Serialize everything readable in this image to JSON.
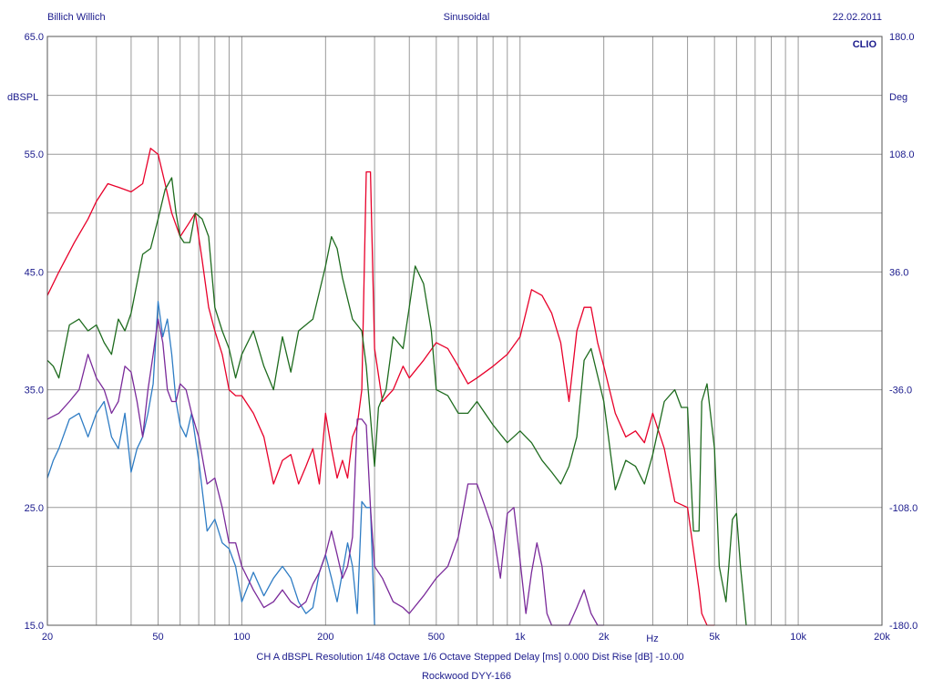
{
  "header": {
    "left": "Billich Willich",
    "center": "Sinusoidal",
    "right": "22.02.2011",
    "brand": "CLIO"
  },
  "footer": {
    "line1": "CH A   dBSPL   Resolution 1/48 Octave    1/6 Octave   Stepped     Delay [ms] 0.000    Dist Rise [dB] -10.00",
    "line2": "Rockwood DYY-166"
  },
  "chart_data": {
    "type": "line",
    "title": "Sinusoidal",
    "xlabel": "Hz",
    "ylabel": "dBSPL",
    "y2label": "Deg",
    "xscale": "log",
    "xlim": [
      20,
      20000
    ],
    "ylim": [
      15,
      65
    ],
    "y2lim": [
      -180,
      180
    ],
    "grid": true,
    "x_ticks": [
      20,
      50,
      100,
      200,
      500,
      1000,
      2000,
      5000,
      10000,
      20000
    ],
    "x_tick_labels": [
      "20",
      "50",
      "100",
      "200",
      "500",
      "1k",
      "2k",
      "5k",
      "10k",
      "20k"
    ],
    "y_ticks": [
      15,
      25,
      35,
      45,
      55,
      65
    ],
    "y_tick_labels": [
      "15.0",
      "25.0",
      "35.0",
      "45.0",
      "55.0",
      "65.0"
    ],
    "y2_ticks": [
      -180,
      -108,
      -36,
      36,
      108,
      180
    ],
    "y2_tick_labels": [
      "-180.0",
      "-108.0",
      "-36.0",
      "36.0",
      "108.0",
      "180.0"
    ],
    "series": [
      {
        "color": "#e8002a",
        "x": [
          20,
          22,
          25,
          28,
          30,
          33,
          36,
          40,
          44,
          47,
          50,
          53,
          56,
          60,
          64,
          68,
          72,
          76,
          80,
          85,
          90,
          95,
          100,
          110,
          120,
          130,
          140,
          150,
          160,
          170,
          180,
          190,
          200,
          210,
          220,
          230,
          240,
          250,
          260,
          270,
          280,
          290,
          300,
          320,
          350,
          380,
          400,
          450,
          500,
          550,
          600,
          650,
          700,
          800,
          900,
          1000,
          1100,
          1200,
          1300,
          1400,
          1500,
          1600,
          1700,
          1800,
          1900,
          2000,
          2200,
          2400,
          2600,
          2800,
          3000,
          3300,
          3600,
          4000,
          4400,
          4500,
          4700,
          5000
        ],
        "y": [
          43.0,
          45.0,
          47.5,
          49.5,
          51.0,
          52.5,
          52.2,
          51.8,
          52.5,
          55.5,
          55.0,
          52.5,
          50.0,
          48.0,
          49.0,
          50.0,
          46.0,
          42.0,
          40.0,
          38.0,
          35.0,
          34.5,
          34.5,
          33.0,
          31.0,
          27.0,
          29.0,
          29.5,
          27.0,
          28.5,
          30.0,
          27.0,
          33.0,
          30.0,
          27.5,
          29.0,
          27.5,
          31.0,
          32.0,
          35.0,
          53.5,
          53.5,
          38.5,
          34.0,
          35.0,
          37.0,
          36.0,
          37.5,
          39.0,
          38.5,
          37.0,
          35.5,
          36.0,
          37.0,
          38.0,
          39.5,
          43.5,
          43.0,
          41.5,
          39.0,
          34.0,
          40.0,
          42.0,
          42.0,
          39.0,
          37.0,
          33.0,
          31.0,
          31.5,
          30.5,
          33.0,
          30.0,
          25.5,
          25.0,
          18.0,
          16.0,
          15.0,
          15.0
        ]
      },
      {
        "color": "#1e6b1e",
        "x": [
          20,
          21,
          22,
          24,
          26,
          28,
          30,
          32,
          34,
          36,
          38,
          40,
          44,
          47,
          50,
          53,
          56,
          58,
          60,
          62,
          65,
          68,
          72,
          76,
          80,
          85,
          90,
          95,
          100,
          110,
          120,
          130,
          140,
          150,
          160,
          180,
          200,
          210,
          220,
          230,
          250,
          270,
          280,
          300,
          310,
          330,
          350,
          380,
          400,
          420,
          450,
          480,
          500,
          550,
          600,
          650,
          700,
          800,
          900,
          1000,
          1100,
          1200,
          1300,
          1400,
          1500,
          1600,
          1700,
          1800,
          2000,
          2200,
          2400,
          2600,
          2800,
          3000,
          3300,
          3600,
          3800,
          4000,
          4200,
          4400,
          4500,
          4700,
          5000,
          5200,
          5500,
          5800,
          6000,
          6200,
          6500
        ],
        "y": [
          37.5,
          37.0,
          36.0,
          40.5,
          41.0,
          40.0,
          40.5,
          39.0,
          38.0,
          41.0,
          40.0,
          41.5,
          46.5,
          47.0,
          49.5,
          52.0,
          53.0,
          50.0,
          48.0,
          47.5,
          47.5,
          50.0,
          49.5,
          48.0,
          42.0,
          40.0,
          38.5,
          36.0,
          38.0,
          40.0,
          37.0,
          35.0,
          39.5,
          36.5,
          40.0,
          41.0,
          45.5,
          48.0,
          47.0,
          44.5,
          41.0,
          40.0,
          37.0,
          28.5,
          33.5,
          35.0,
          39.5,
          38.5,
          42.0,
          45.5,
          44.0,
          40.0,
          35.0,
          34.5,
          33.0,
          33.0,
          34.0,
          32.0,
          30.5,
          31.5,
          30.5,
          29.0,
          28.0,
          27.0,
          28.5,
          31.0,
          37.5,
          38.5,
          34.0,
          26.5,
          29.0,
          28.5,
          27.0,
          29.5,
          34.0,
          35.0,
          33.5,
          33.5,
          23.0,
          23.0,
          34.0,
          35.5,
          30.0,
          20.0,
          17.0,
          24.0,
          24.5,
          20.0,
          15.0
        ]
      },
      {
        "color": "#2e7cc4",
        "x": [
          20,
          21,
          22,
          24,
          26,
          28,
          30,
          32,
          34,
          36,
          38,
          40,
          42,
          44,
          46,
          48,
          50,
          52,
          54,
          56,
          58,
          60,
          63,
          66,
          70,
          75,
          80,
          85,
          90,
          95,
          100,
          110,
          120,
          130,
          140,
          150,
          160,
          170,
          180,
          190,
          200,
          210,
          220,
          230,
          240,
          250,
          260,
          270,
          280,
          290,
          300
        ],
        "y": [
          27.5,
          29.0,
          30.0,
          32.5,
          33.0,
          31.0,
          33.0,
          34.0,
          31.0,
          30.0,
          33.0,
          28.0,
          30.0,
          31.0,
          33.0,
          35.5,
          42.5,
          39.5,
          41.0,
          38.0,
          34.0,
          32.0,
          31.0,
          33.0,
          29.0,
          23.0,
          24.0,
          22.0,
          21.5,
          20.0,
          17.0,
          19.5,
          17.5,
          19.0,
          20.0,
          19.0,
          17.0,
          16.0,
          16.5,
          19.5,
          21.0,
          19.0,
          17.0,
          19.5,
          22.0,
          20.0,
          16.0,
          25.5,
          25.0,
          25.0,
          15.0
        ]
      },
      {
        "color": "#7a2a9a",
        "x": [
          20,
          22,
          24,
          26,
          28,
          30,
          32,
          34,
          36,
          38,
          40,
          42,
          44,
          46,
          48,
          50,
          52,
          54,
          56,
          58,
          60,
          63,
          66,
          70,
          75,
          80,
          85,
          90,
          95,
          100,
          110,
          120,
          130,
          140,
          150,
          160,
          170,
          180,
          190,
          200,
          210,
          220,
          230,
          240,
          250,
          260,
          270,
          280,
          290,
          300,
          320,
          350,
          380,
          400,
          450,
          500,
          550,
          600,
          650,
          700,
          750,
          800,
          850,
          900,
          950,
          1000,
          1050,
          1100,
          1150,
          1200,
          1250,
          1300,
          1400,
          1500,
          1600,
          1700,
          1800,
          1900,
          2000
        ],
        "y": [
          32.5,
          33.0,
          34.0,
          35.0,
          38.0,
          36.0,
          35.0,
          33.0,
          34.0,
          37.0,
          36.5,
          34.0,
          31.0,
          35.0,
          38.0,
          41.0,
          39.0,
          35.0,
          34.0,
          34.0,
          35.5,
          35.0,
          33.0,
          31.0,
          27.0,
          27.5,
          25.0,
          22.0,
          22.0,
          20.0,
          18.0,
          16.5,
          17.0,
          18.0,
          17.0,
          16.5,
          17.0,
          18.5,
          19.5,
          21.0,
          23.0,
          21.0,
          19.0,
          20.0,
          22.5,
          32.5,
          32.5,
          32.0,
          25.0,
          20.0,
          19.0,
          17.0,
          16.5,
          16.0,
          17.5,
          19.0,
          20.0,
          22.5,
          27.0,
          27.0,
          25.0,
          23.0,
          19.0,
          24.5,
          25.0,
          20.5,
          16.0,
          19.5,
          22.0,
          20.0,
          16.0,
          15.0,
          15.0,
          15.0,
          16.5,
          18.0,
          16.0,
          15.0,
          15.0
        ]
      }
    ]
  }
}
